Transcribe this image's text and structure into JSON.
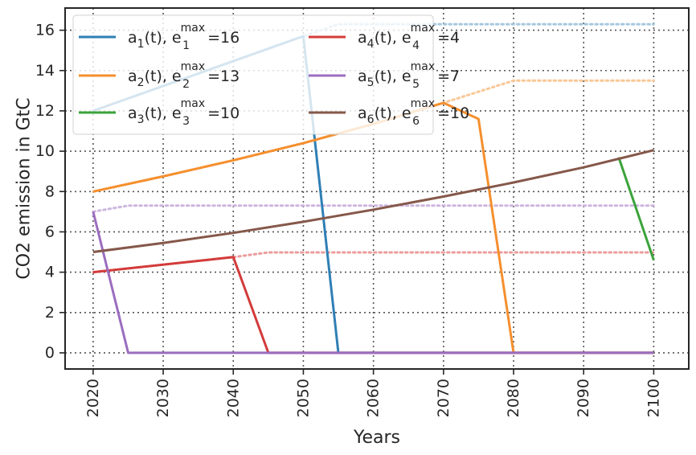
{
  "chart_data": {
    "type": "line",
    "title": "",
    "xlabel": "Years",
    "ylabel": "CO2 emission in GtC",
    "xlim": [
      2016,
      2105
    ],
    "ylim": [
      -0.8,
      17.1
    ],
    "xticks": [
      2020,
      2030,
      2040,
      2050,
      2060,
      2070,
      2080,
      2090,
      2100
    ],
    "yticks": [
      0,
      2,
      4,
      6,
      8,
      10,
      12,
      14,
      16
    ],
    "grid": true,
    "legend_placement": "top-left",
    "legend_columns": 2,
    "series": [
      {
        "name": "a1(t), e1max = 16",
        "legend": {
          "a": "a",
          "a_sub": "1",
          "e": "e",
          "e_sub": "1",
          "sup": "max",
          "value": "16"
        },
        "color": "#2f7fb5",
        "x": [
          2020,
          2050,
          2055,
          2100
        ],
        "y": [
          12,
          15.7,
          0,
          0
        ],
        "limit": {
          "color": "#a6c8de",
          "x": [
            2020,
            2050,
            2055,
            2100
          ],
          "y": [
            12,
            15.7,
            16.3,
            16.3
          ]
        }
      },
      {
        "name": "a2(t), e2max = 13",
        "legend": {
          "a": "a",
          "a_sub": "2",
          "e": "e",
          "e_sub": "2",
          "sup": "max",
          "value": "13"
        },
        "color": "#f58f2e",
        "x": [
          2020,
          2030,
          2040,
          2050,
          2060,
          2070,
          2075,
          2080,
          2100
        ],
        "y": [
          8,
          8.75,
          9.55,
          10.4,
          11.35,
          12.4,
          11.6,
          0,
          0
        ],
        "limit": {
          "color": "#f9c796",
          "x": [
            2020,
            2030,
            2040,
            2050,
            2060,
            2070,
            2080,
            2100
          ],
          "y": [
            8,
            8.75,
            9.55,
            10.4,
            11.35,
            12.4,
            13.5,
            13.5
          ]
        }
      },
      {
        "name": "a3(t), e3max = 10",
        "legend": {
          "a": "a",
          "a_sub": "3",
          "e": "e",
          "e_sub": "3",
          "sup": "max",
          "value": "10"
        },
        "color": "#3ba33b",
        "x": [
          2095,
          2100
        ],
        "y": [
          9.7,
          4.6
        ],
        "limit": null
      },
      {
        "name": "a4(t), e4max = 4",
        "legend": {
          "a": "a",
          "a_sub": "4",
          "e": "e",
          "e_sub": "4",
          "sup": "max",
          "value": "4"
        },
        "color": "#d33b3b",
        "x": [
          2020,
          2040,
          2045,
          2100
        ],
        "y": [
          4,
          4.75,
          0,
          0
        ],
        "limit": {
          "color": "#ec9c9c",
          "x": [
            2020,
            2040,
            2045,
            2100
          ],
          "y": [
            4,
            4.75,
            4.98,
            4.98
          ]
        }
      },
      {
        "name": "a5(t), e5max = 7",
        "legend": {
          "a": "a",
          "a_sub": "5",
          "e": "e",
          "e_sub": "5",
          "sup": "max",
          "value": "7"
        },
        "color": "#9b6dbf",
        "x": [
          2020,
          2025,
          2100
        ],
        "y": [
          7,
          0,
          0
        ],
        "limit": {
          "color": "#cdb6df",
          "x": [
            2020,
            2025,
            2100
          ],
          "y": [
            7,
            7.3,
            7.3
          ]
        }
      },
      {
        "name": "a6(t), e6max = 10",
        "legend": {
          "a": "a",
          "a_sub": "6",
          "e": "e",
          "e_sub": "6",
          "sup": "max",
          "value": "10"
        },
        "color": "#85584a",
        "x": [
          2020,
          2030,
          2040,
          2050,
          2060,
          2070,
          2080,
          2090,
          2100
        ],
        "y": [
          5,
          5.45,
          5.95,
          6.5,
          7.1,
          7.75,
          8.45,
          9.2,
          10.05
        ],
        "limit": null
      }
    ]
  }
}
